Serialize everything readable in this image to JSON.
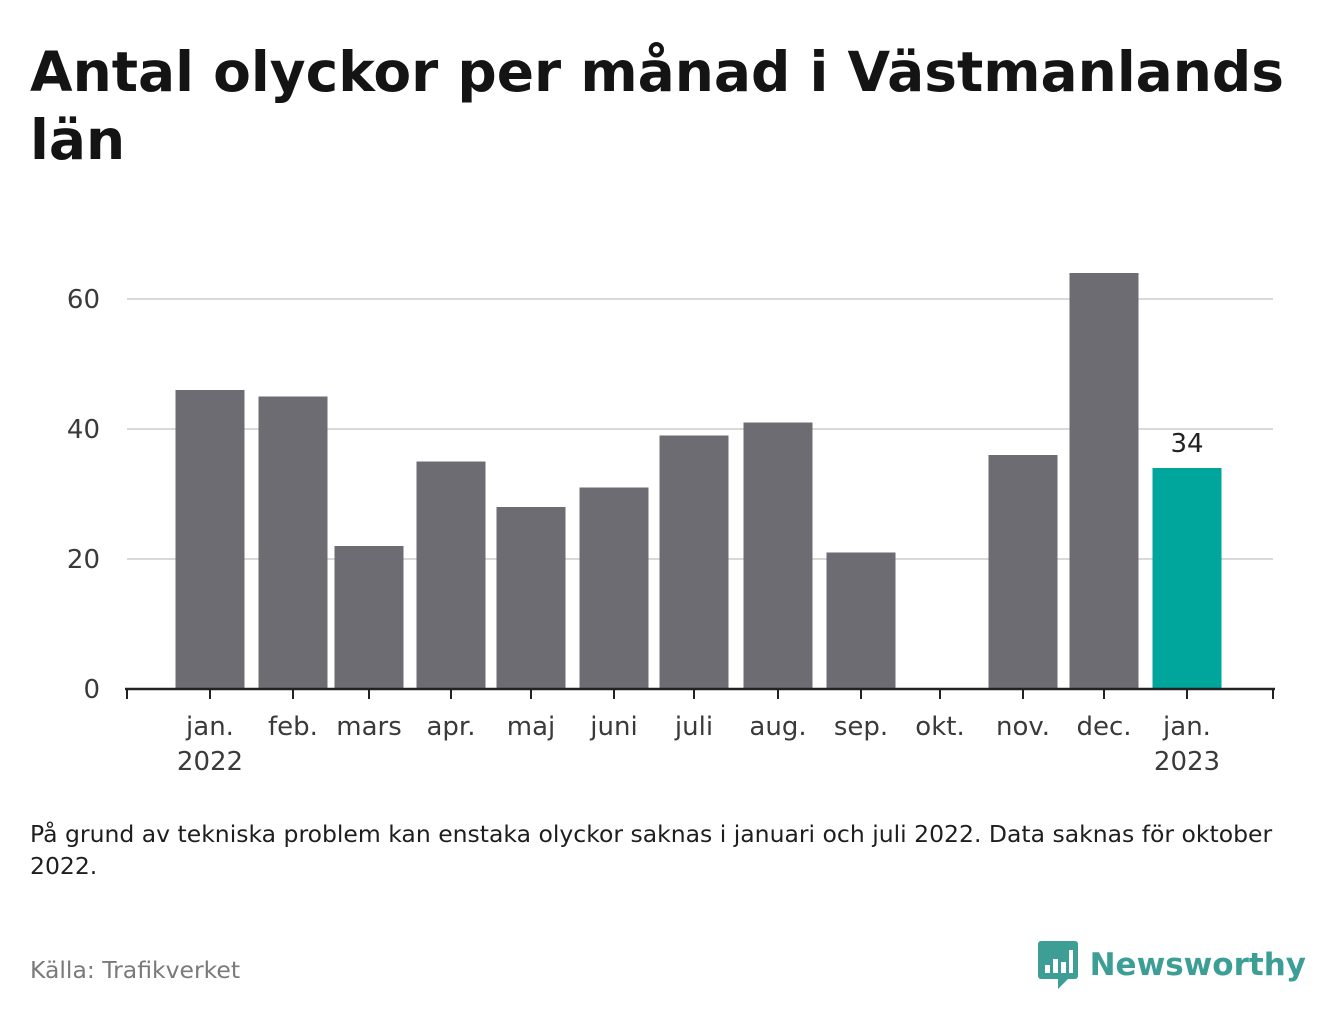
{
  "title": "Antal olyckor per månad i Västmanlands län",
  "note": "På grund av tekniska problem kan enstaka olyckor saknas i januari och juli 2022. Data saknas för oktober 2022.",
  "source": "Källa: Trafikverket",
  "brand": {
    "name": "Newsworthy",
    "icon": "newsworthy-logo-icon"
  },
  "colors": {
    "bar": "#6e6c73",
    "highlight": "#00a59b",
    "grid": "#d9d9d9",
    "axis": "#222222",
    "brand": "#3d9e96"
  },
  "chart_data": {
    "type": "bar",
    "categories": [
      "jan. 2022",
      "feb.",
      "mars",
      "apr.",
      "maj",
      "juni",
      "juli",
      "aug.",
      "sep.",
      "okt.",
      "nov.",
      "dec.",
      "jan. 2023"
    ],
    "category_lines": [
      [
        "jan.",
        "2022"
      ],
      [
        "feb."
      ],
      [
        "mars"
      ],
      [
        "apr."
      ],
      [
        "maj"
      ],
      [
        "juni"
      ],
      [
        "juli"
      ],
      [
        "aug."
      ],
      [
        "sep."
      ],
      [
        "okt."
      ],
      [
        "nov."
      ],
      [
        "dec."
      ],
      [
        "jan.",
        "2023"
      ]
    ],
    "values": [
      46,
      45,
      22,
      35,
      28,
      31,
      39,
      41,
      21,
      null,
      36,
      64,
      34
    ],
    "highlight_index": 12,
    "data_labels": [
      {
        "index": 12,
        "text": "34"
      }
    ],
    "yticks": [
      0,
      20,
      40,
      60
    ],
    "ylim": [
      0,
      70
    ],
    "grid": true,
    "xlabel": "",
    "ylabel": ""
  }
}
